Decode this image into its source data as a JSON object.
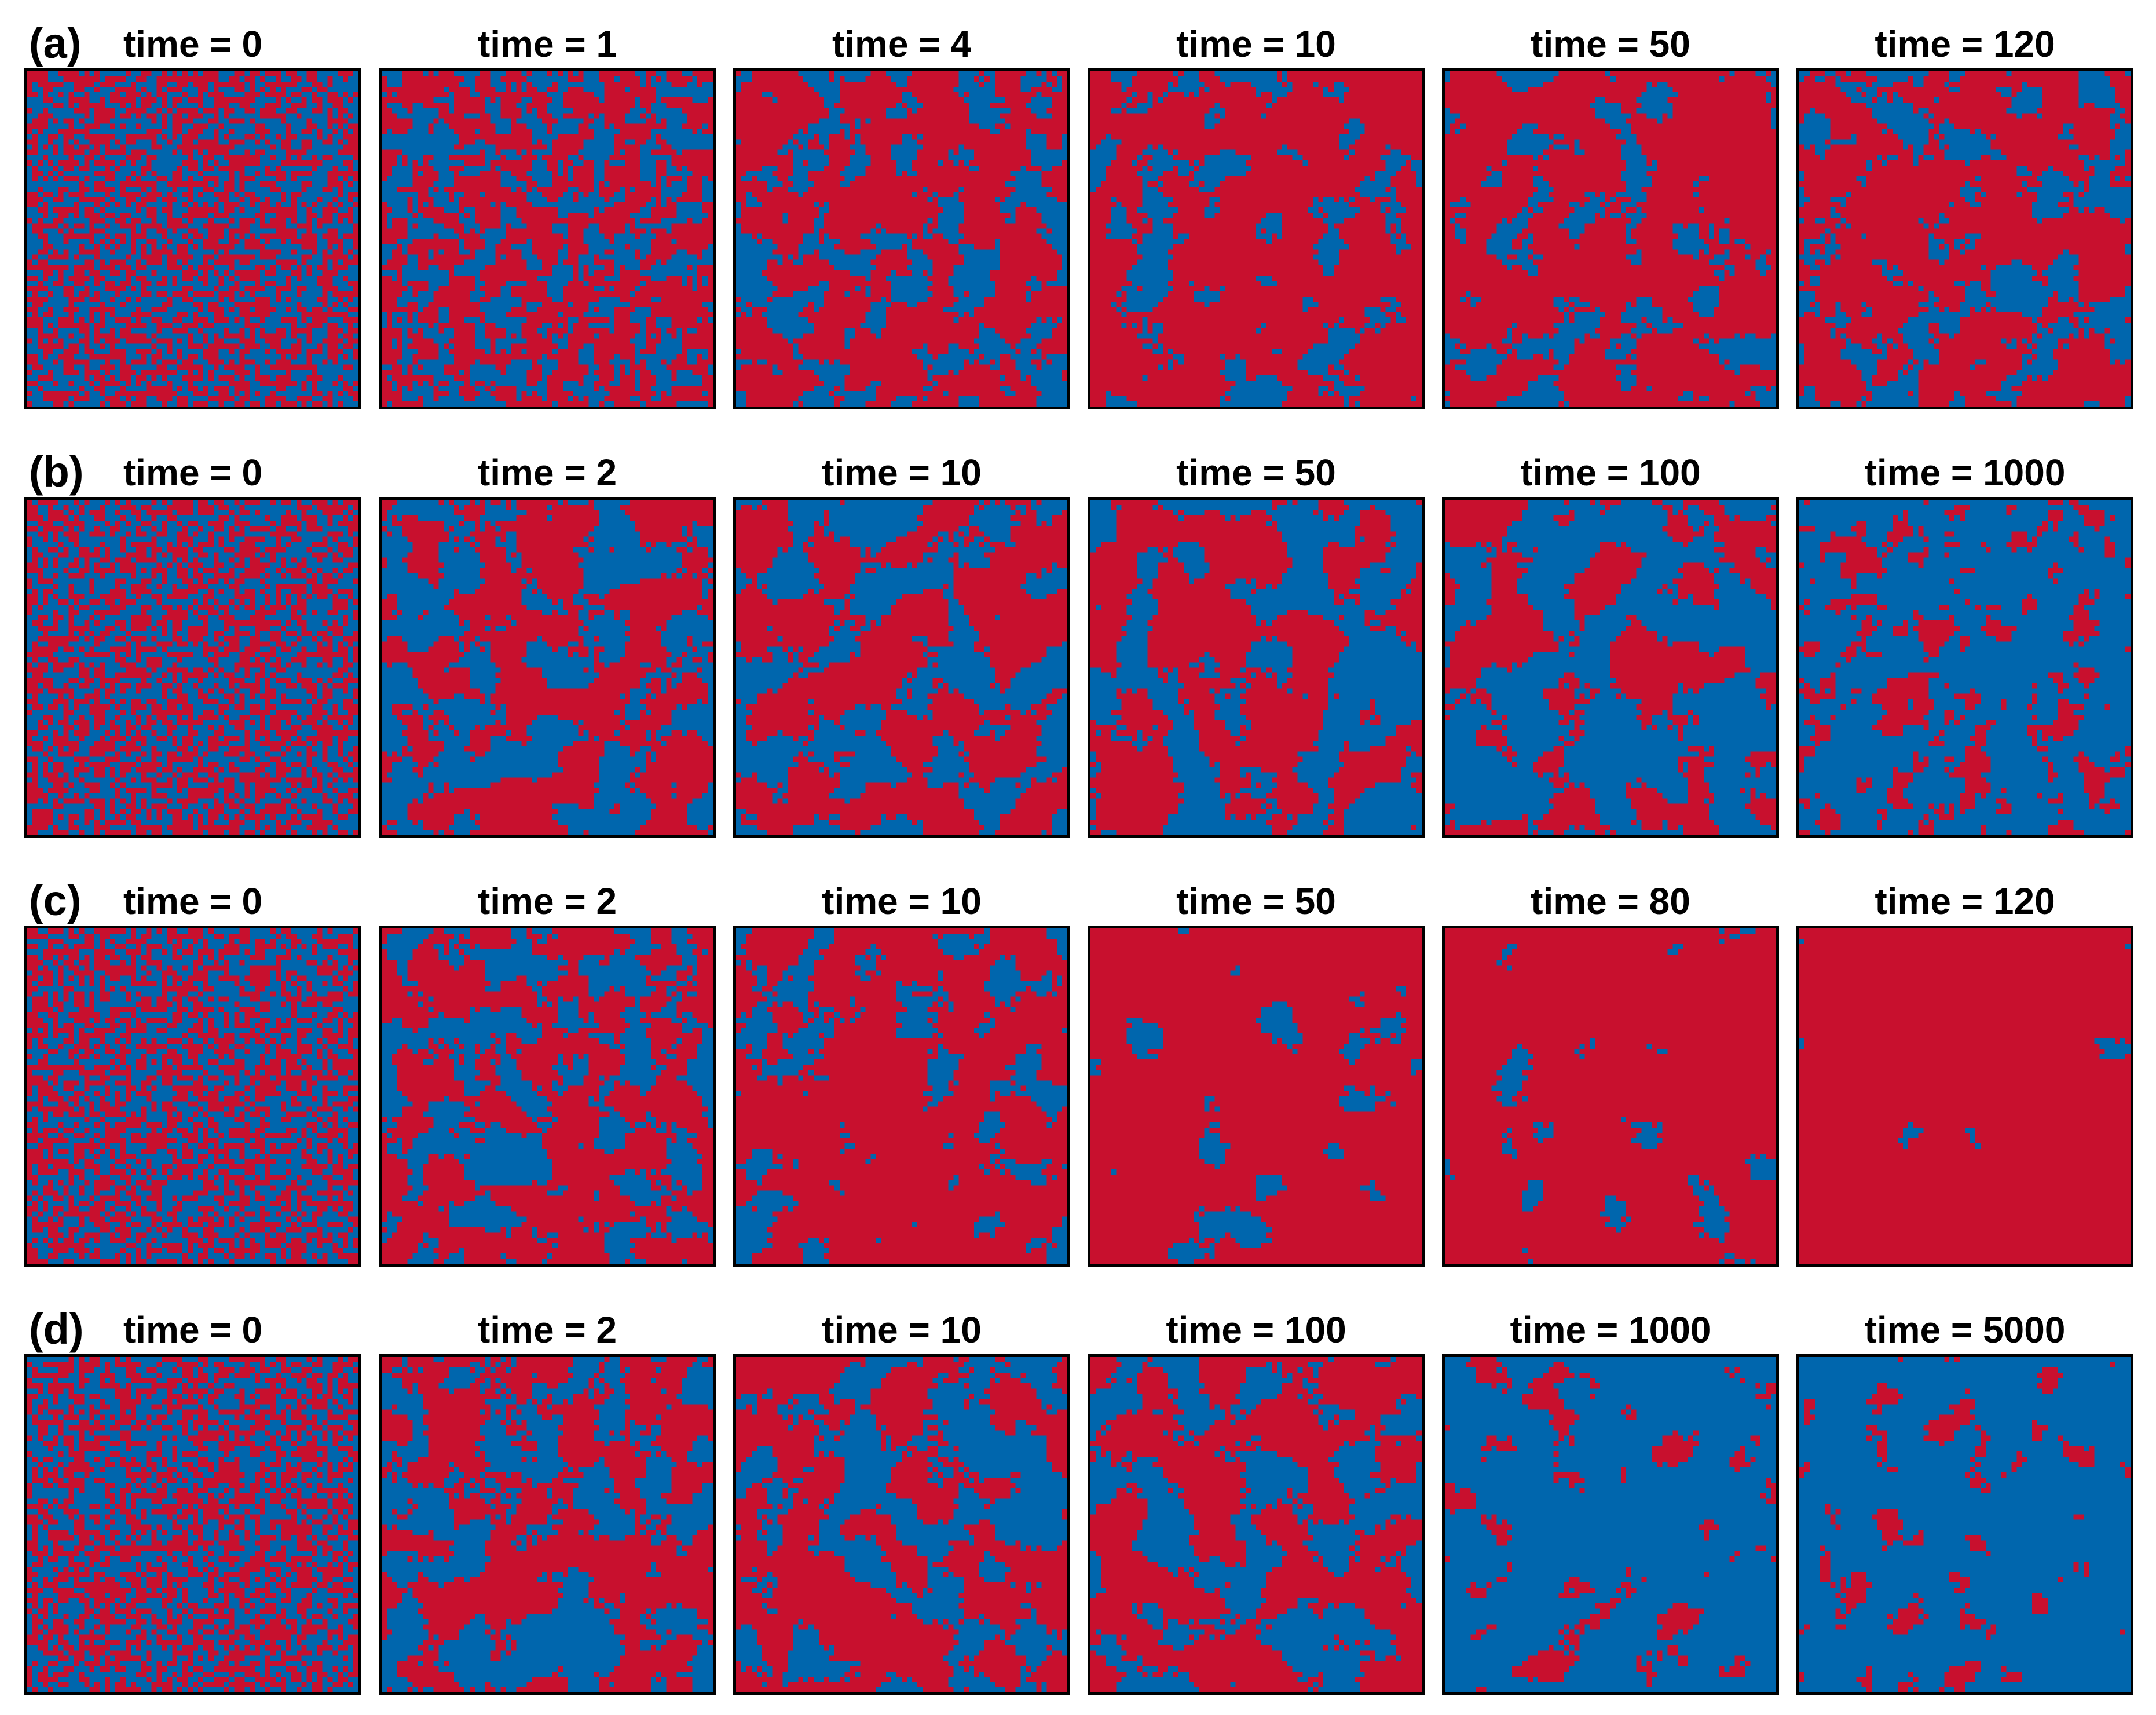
{
  "colors": {
    "state_a": "#c8102e",
    "state_b": "#0066ad",
    "frame": "#000000"
  },
  "rows": [
    {
      "label": "(a)",
      "panels": [
        {
          "title": "time = 0",
          "blue_fraction": 0.5,
          "cluster": 0.0,
          "seed": 11
        },
        {
          "title": "time = 1",
          "blue_fraction": 0.42,
          "cluster": 0.15,
          "seed": 12
        },
        {
          "title": "time = 4",
          "blue_fraction": 0.33,
          "cluster": 0.3,
          "seed": 13
        },
        {
          "title": "time = 10",
          "blue_fraction": 0.22,
          "cluster": 0.5,
          "seed": 14
        },
        {
          "title": "time = 50",
          "blue_fraction": 0.22,
          "cluster": 0.7,
          "seed": 15
        },
        {
          "title": "time = 120",
          "blue_fraction": 0.3,
          "cluster": 0.55,
          "seed": 16
        }
      ]
    },
    {
      "label": "(b)",
      "panels": [
        {
          "title": "time = 0",
          "blue_fraction": 0.5,
          "cluster": 0.0,
          "seed": 21
        },
        {
          "title": "time = 2",
          "blue_fraction": 0.45,
          "cluster": 0.7,
          "seed": 22
        },
        {
          "title": "time = 10",
          "blue_fraction": 0.42,
          "cluster": 0.85,
          "seed": 23
        },
        {
          "title": "time = 50",
          "blue_fraction": 0.45,
          "cluster": 0.9,
          "seed": 24
        },
        {
          "title": "time = 100",
          "blue_fraction": 0.62,
          "cluster": 0.8,
          "seed": 25
        },
        {
          "title": "time = 1000",
          "blue_fraction": 0.78,
          "cluster": 0.2,
          "seed": 26
        }
      ]
    },
    {
      "label": "(c)",
      "panels": [
        {
          "title": "time = 0",
          "blue_fraction": 0.5,
          "cluster": 0.0,
          "seed": 31
        },
        {
          "title": "time = 2",
          "blue_fraction": 0.4,
          "cluster": 0.45,
          "seed": 32
        },
        {
          "title": "time = 10",
          "blue_fraction": 0.22,
          "cluster": 0.7,
          "seed": 33
        },
        {
          "title": "time = 50",
          "blue_fraction": 0.09,
          "cluster": 0.9,
          "seed": 34
        },
        {
          "title": "time = 80",
          "blue_fraction": 0.06,
          "cluster": 0.92,
          "seed": 35
        },
        {
          "title": "time = 120",
          "blue_fraction": 0.01,
          "cluster": 0.95,
          "seed": 36
        }
      ]
    },
    {
      "label": "(d)",
      "panels": [
        {
          "title": "time = 0",
          "blue_fraction": 0.5,
          "cluster": 0.0,
          "seed": 41
        },
        {
          "title": "time = 2",
          "blue_fraction": 0.45,
          "cluster": 0.6,
          "seed": 42
        },
        {
          "title": "time = 10",
          "blue_fraction": 0.42,
          "cluster": 0.75,
          "seed": 43
        },
        {
          "title": "time = 100",
          "blue_fraction": 0.4,
          "cluster": 0.85,
          "seed": 44
        },
        {
          "title": "time = 1000",
          "blue_fraction": 0.88,
          "cluster": 0.6,
          "seed": 45
        },
        {
          "title": "time = 5000",
          "blue_fraction": 0.9,
          "cluster": 0.55,
          "seed": 46
        }
      ]
    }
  ]
}
